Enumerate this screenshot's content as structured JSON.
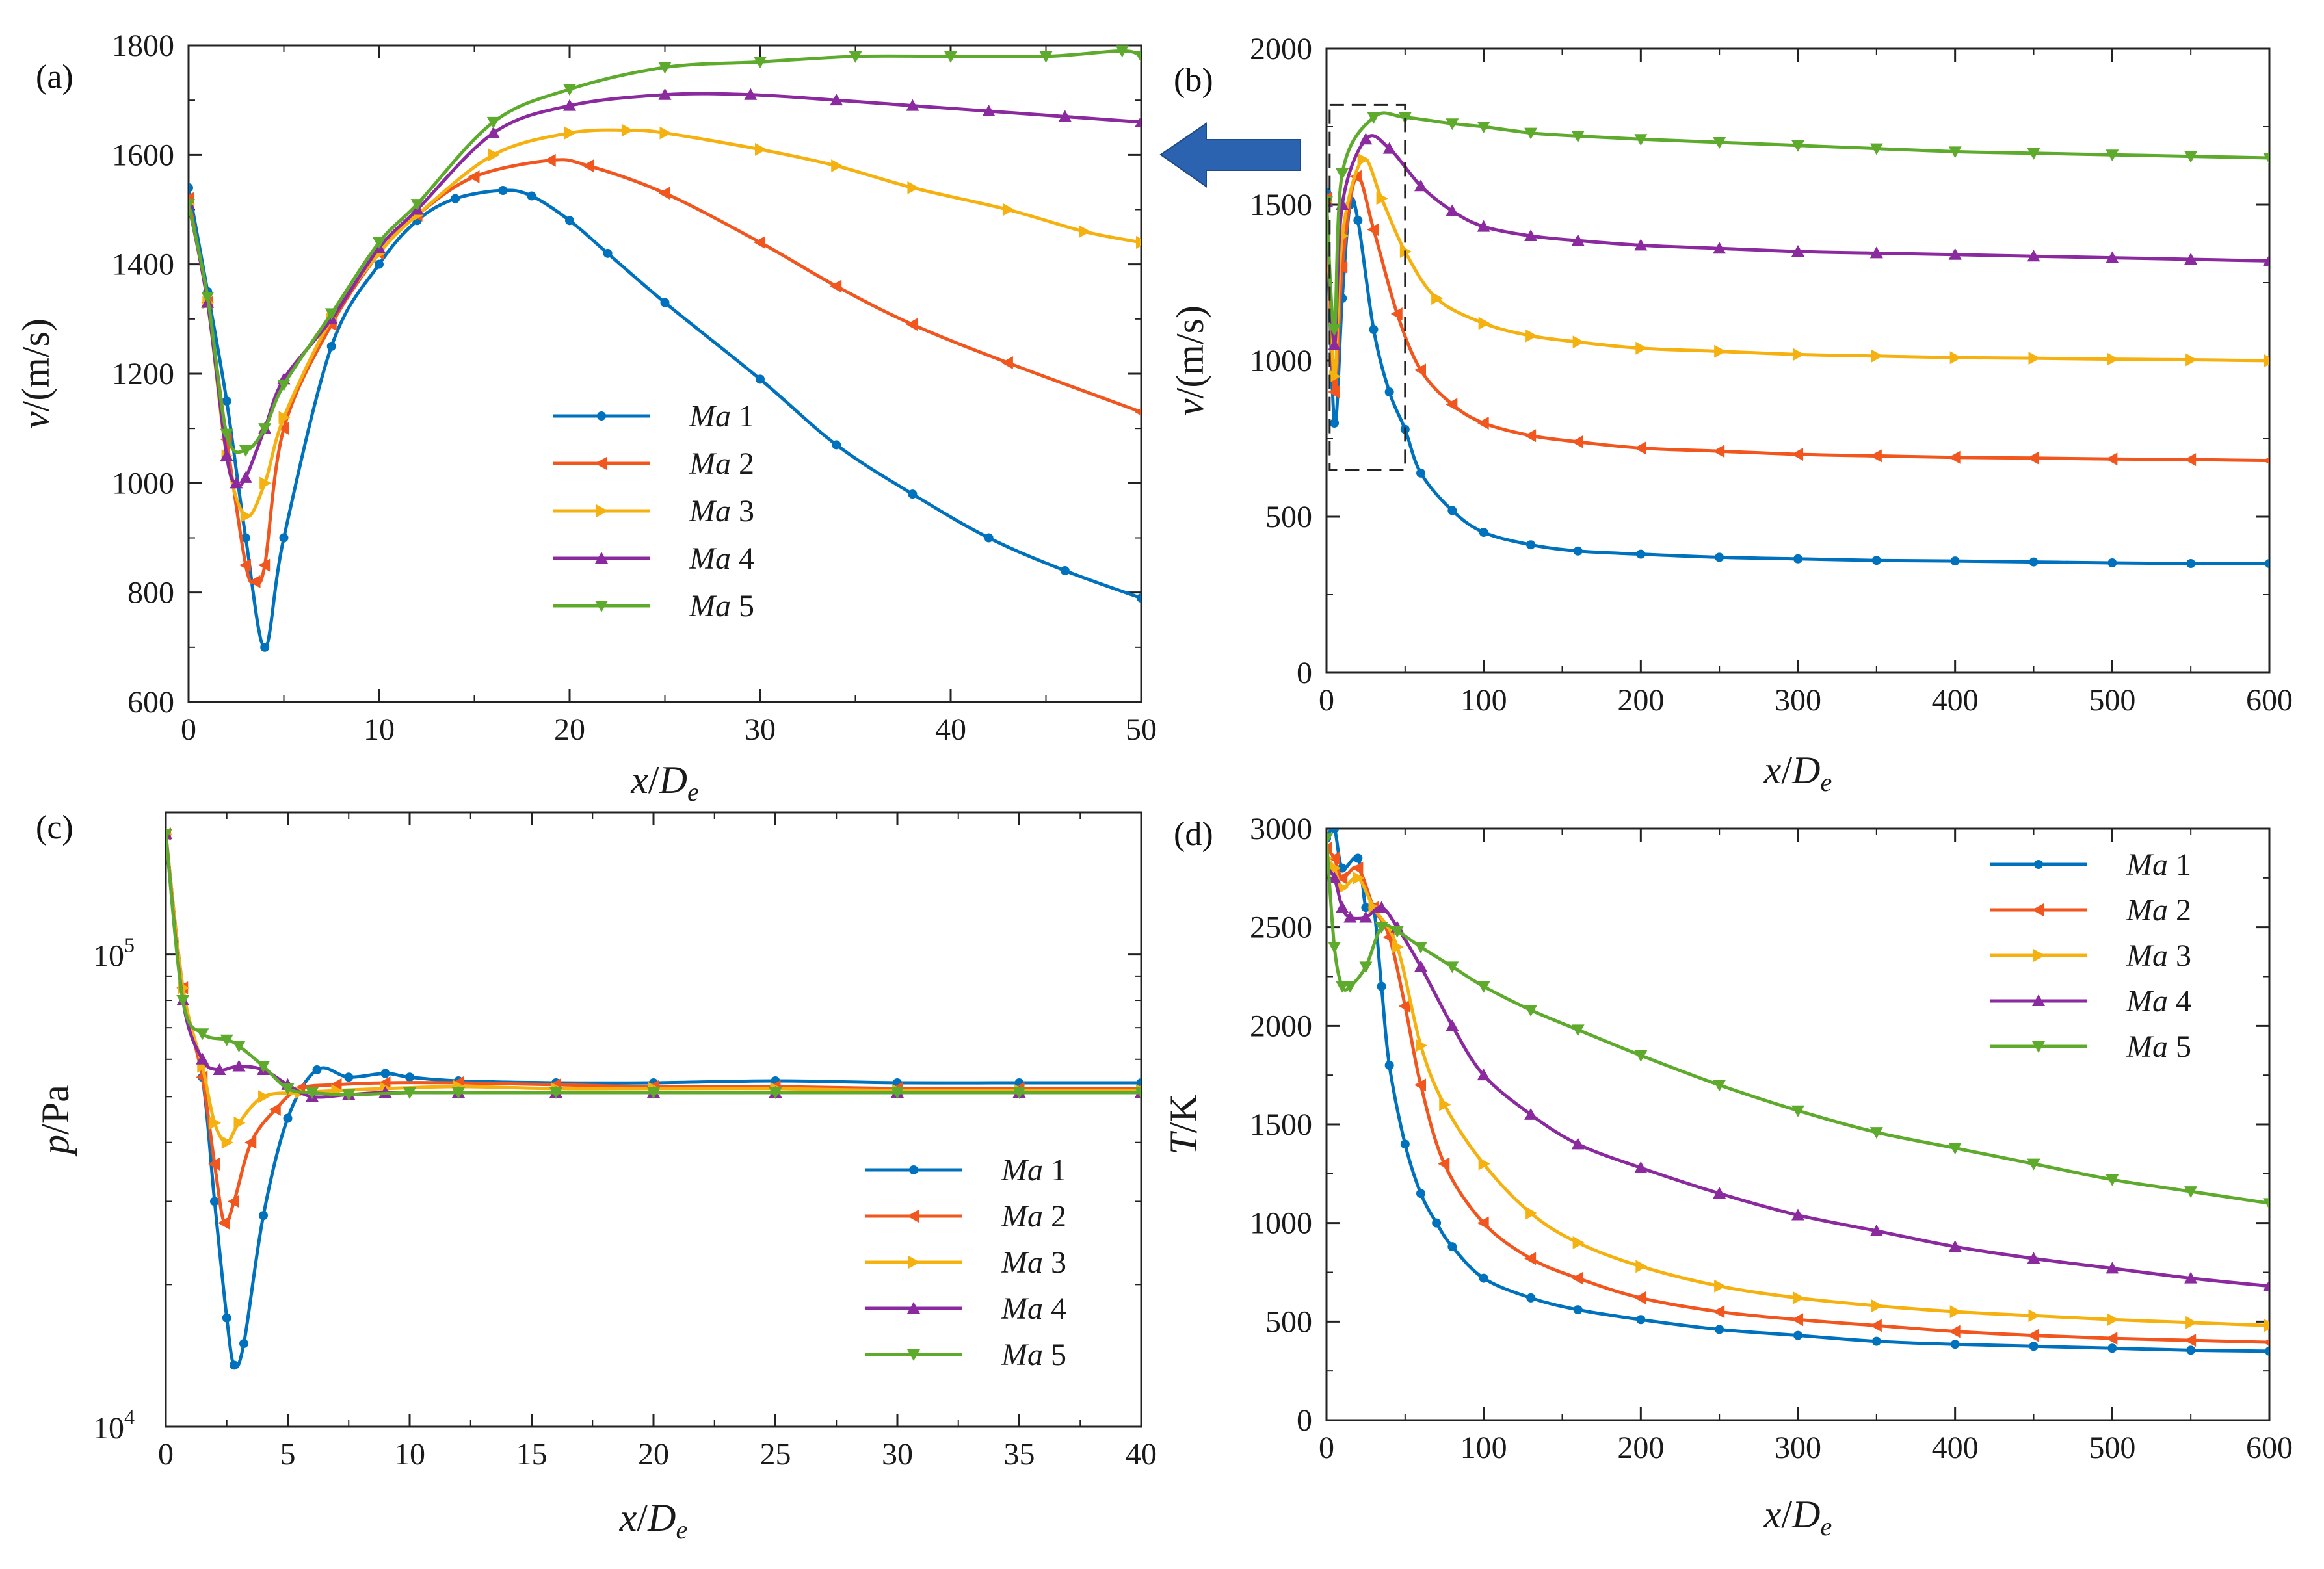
{
  "colors": {
    "Ma 1": "#0072BD",
    "Ma 2": "#F0561E",
    "Ma 3": "#F5B10F",
    "Ma 4": "#8A2A9E",
    "Ma 5": "#5DAA2D",
    "arrow": "#2B63B0"
  },
  "chart_data": [
    {
      "panel": "(a)",
      "type": "line",
      "xlabel": "x/D_e",
      "ylabel": "v/(m/s)",
      "xlim": [
        0,
        50
      ],
      "ylim": [
        600,
        1800
      ],
      "xticks": [
        "0",
        "10",
        "20",
        "30",
        "40",
        "50"
      ],
      "yticks": [
        "600",
        "800",
        "1000",
        "1200",
        "1400",
        "1600",
        "1800"
      ],
      "legend": "lower center",
      "series": [
        {
          "name": "Ma 1",
          "marker": "dot",
          "x": [
            0,
            1,
            2,
            3,
            4,
            5,
            7.5,
            10,
            12,
            14,
            16.5,
            18,
            20,
            22,
            25,
            30,
            34,
            38,
            42,
            46,
            50
          ],
          "y": [
            1540,
            1350,
            1150,
            900,
            700,
            900,
            1250,
            1400,
            1480,
            1520,
            1535,
            1525,
            1480,
            1420,
            1330,
            1190,
            1070,
            980,
            900,
            840,
            790
          ]
        },
        {
          "name": "Ma 2",
          "marker": "left-triangle",
          "x": [
            0,
            1,
            2,
            3,
            3.5,
            4,
            5,
            7.5,
            10,
            12,
            15,
            19,
            21,
            25,
            30,
            34,
            38,
            43,
            50
          ],
          "y": [
            1520,
            1330,
            1080,
            850,
            820,
            850,
            1100,
            1290,
            1420,
            1490,
            1560,
            1590,
            1580,
            1530,
            1440,
            1360,
            1290,
            1220,
            1130
          ]
        },
        {
          "name": "Ma 3",
          "marker": "right-triangle",
          "x": [
            0,
            1,
            2,
            3,
            4,
            5,
            7.5,
            10,
            12,
            16,
            20,
            23,
            25,
            30,
            34,
            38,
            43,
            47,
            50
          ],
          "y": [
            1510,
            1330,
            1050,
            940,
            1000,
            1120,
            1300,
            1420,
            1490,
            1600,
            1640,
            1645,
            1640,
            1610,
            1580,
            1540,
            1500,
            1460,
            1440
          ]
        },
        {
          "name": "Ma 4",
          "marker": "up-triangle",
          "x": [
            0,
            1,
            2,
            2.5,
            3,
            4,
            5,
            7.5,
            10,
            12,
            16,
            20,
            25,
            29.5,
            34,
            38,
            42,
            46,
            50
          ],
          "y": [
            1510,
            1330,
            1050,
            1000,
            1010,
            1100,
            1190,
            1300,
            1430,
            1500,
            1640,
            1690,
            1710,
            1710,
            1700,
            1690,
            1680,
            1670,
            1660
          ]
        },
        {
          "name": "Ma 5",
          "marker": "down-triangle",
          "x": [
            0,
            1,
            2,
            3,
            4,
            5,
            7.5,
            10,
            12,
            16,
            20,
            25,
            30,
            35,
            40,
            45,
            49,
            50
          ],
          "y": [
            1510,
            1340,
            1090,
            1060,
            1100,
            1180,
            1310,
            1440,
            1510,
            1660,
            1720,
            1760,
            1770,
            1780,
            1780,
            1780,
            1790,
            1780
          ]
        }
      ]
    },
    {
      "panel": "(b)",
      "type": "line",
      "xlabel": "x/D_e",
      "ylabel": "v/(m/s)",
      "xlim": [
        0,
        600
      ],
      "ylim": [
        0,
        2000
      ],
      "xticks": [
        "0",
        "100",
        "200",
        "300",
        "400",
        "500",
        "600"
      ],
      "yticks": [
        "0",
        "500",
        "1000",
        "1500",
        "2000"
      ],
      "legend": "none",
      "annotations": [
        "dashed box around x 0–50 referencing panel (a)",
        "arrow pointing to panel (a)"
      ],
      "series": [
        {
          "name": "Ma 1",
          "marker": "dot",
          "x": [
            0,
            5,
            10,
            15,
            20,
            30,
            40,
            50,
            60,
            80,
            100,
            130,
            160,
            200,
            250,
            300,
            350,
            400,
            450,
            500,
            550,
            600
          ],
          "y": [
            1540,
            800,
            1200,
            1500,
            1450,
            1100,
            900,
            780,
            640,
            520,
            450,
            410,
            390,
            380,
            370,
            365,
            360,
            358,
            355,
            352,
            350,
            350
          ]
        },
        {
          "name": "Ma 2",
          "marker": "left-triangle",
          "x": [
            0,
            5,
            10,
            19,
            30,
            45,
            60,
            80,
            100,
            130,
            160,
            200,
            250,
            300,
            350,
            400,
            450,
            500,
            550,
            600
          ],
          "y": [
            1520,
            900,
            1300,
            1590,
            1420,
            1150,
            970,
            860,
            800,
            760,
            740,
            720,
            710,
            700,
            695,
            690,
            688,
            685,
            683,
            680
          ]
        },
        {
          "name": "Ma 3",
          "marker": "right-triangle",
          "x": [
            0,
            5,
            10,
            23,
            35,
            50,
            70,
            100,
            130,
            160,
            200,
            250,
            300,
            350,
            400,
            450,
            500,
            550,
            600
          ],
          "y": [
            1510,
            950,
            1400,
            1645,
            1520,
            1350,
            1200,
            1120,
            1080,
            1060,
            1040,
            1030,
            1020,
            1015,
            1010,
            1008,
            1005,
            1003,
            1000
          ]
        },
        {
          "name": "Ma 4",
          "marker": "up-triangle",
          "x": [
            0,
            5,
            10,
            25,
            40,
            60,
            80,
            100,
            130,
            160,
            200,
            250,
            300,
            350,
            400,
            450,
            500,
            550,
            600
          ],
          "y": [
            1510,
            1050,
            1500,
            1710,
            1680,
            1560,
            1480,
            1430,
            1400,
            1385,
            1370,
            1360,
            1350,
            1345,
            1340,
            1335,
            1330,
            1325,
            1320
          ]
        },
        {
          "name": "Ma 5",
          "marker": "down-triangle",
          "x": [
            0,
            5,
            10,
            30,
            50,
            80,
            100,
            130,
            160,
            200,
            250,
            300,
            350,
            400,
            450,
            500,
            550,
            600
          ],
          "y": [
            1510,
            1100,
            1600,
            1780,
            1780,
            1760,
            1750,
            1730,
            1720,
            1710,
            1700,
            1690,
            1680,
            1670,
            1665,
            1660,
            1655,
            1650
          ]
        }
      ]
    },
    {
      "panel": "(c)",
      "type": "line",
      "xlabel": "x/D_e",
      "ylabel": "p/Pa",
      "yscale": "log",
      "xlim": [
        0,
        40
      ],
      "ylim": [
        10000,
        200000
      ],
      "xticks": [
        "0",
        "5",
        "10",
        "15",
        "20",
        "25",
        "30",
        "35",
        "40"
      ],
      "yticks": [
        "10^4",
        "10^5"
      ],
      "legend": "lower right",
      "series": [
        {
          "name": "Ma 1",
          "marker": "dot",
          "x": [
            0,
            0.7,
            1.5,
            2,
            2.5,
            2.8,
            3.2,
            4,
            5,
            6.2,
            7.5,
            9,
            10,
            12,
            16,
            20,
            25,
            30,
            35,
            40
          ],
          "y": [
            180000,
            85000,
            55000,
            30000,
            17000,
            13500,
            15000,
            28000,
            45000,
            57000,
            55000,
            56000,
            55000,
            54000,
            53500,
            53500,
            54000,
            53500,
            53500,
            53500
          ]
        },
        {
          "name": "Ma 2",
          "marker": "left-triangle",
          "x": [
            0,
            0.7,
            1.5,
            2,
            2.4,
            2.8,
            3.5,
            4.5,
            5.5,
            7,
            9,
            12,
            16,
            20,
            25,
            30,
            35,
            40
          ],
          "y": [
            180000,
            85000,
            55000,
            36000,
            27000,
            30000,
            40000,
            47000,
            52000,
            53000,
            53500,
            53500,
            53000,
            52500,
            52500,
            52000,
            52000,
            52000
          ]
        },
        {
          "name": "Ma 3",
          "marker": "right-triangle",
          "x": [
            0,
            0.7,
            1.5,
            2,
            2.5,
            3,
            4,
            5.5,
            7,
            9,
            12,
            16,
            20,
            25,
            30,
            35,
            40
          ],
          "y": [
            180000,
            85000,
            58000,
            44000,
            40000,
            44000,
            50000,
            51000,
            51500,
            52000,
            52500,
            52000,
            52000,
            52000,
            51500,
            51500,
            51500
          ]
        },
        {
          "name": "Ma 4",
          "marker": "up-triangle",
          "x": [
            0,
            0.7,
            1.5,
            2.2,
            3,
            4,
            5,
            6,
            7.5,
            9,
            12,
            16,
            20,
            25,
            30,
            35,
            40
          ],
          "y": [
            180000,
            80000,
            60000,
            57000,
            58000,
            57000,
            53000,
            50000,
            50500,
            51000,
            51000,
            51000,
            51000,
            51000,
            51000,
            51000,
            51000
          ]
        },
        {
          "name": "Ma 5",
          "marker": "down-triangle",
          "x": [
            0,
            0.7,
            1.5,
            2.5,
            3,
            4,
            5,
            6,
            7.5,
            10,
            12,
            16,
            20,
            25,
            30,
            35,
            40
          ],
          "y": [
            180000,
            80000,
            68000,
            66000,
            64000,
            58000,
            52000,
            51000,
            50500,
            51000,
            51000,
            51000,
            51000,
            51000,
            51000,
            51000,
            51000
          ]
        }
      ]
    },
    {
      "panel": "(d)",
      "type": "line",
      "xlabel": "x/D_e",
      "ylabel": "T/K",
      "xlim": [
        0,
        600
      ],
      "ylim": [
        0,
        3000
      ],
      "xticks": [
        "0",
        "100",
        "200",
        "300",
        "400",
        "500",
        "600"
      ],
      "yticks": [
        "0",
        "500",
        "1000",
        "1500",
        "2000",
        "2500",
        "3000"
      ],
      "legend": "top right",
      "series": [
        {
          "name": "Ma 1",
          "marker": "dot",
          "x": [
            0,
            5,
            10,
            20,
            25,
            30,
            35,
            40,
            50,
            60,
            70,
            80,
            100,
            130,
            160,
            200,
            250,
            300,
            350,
            400,
            450,
            500,
            550,
            600
          ],
          "y": [
            2950,
            3000,
            2800,
            2850,
            2600,
            2600,
            2200,
            1800,
            1400,
            1150,
            1000,
            880,
            720,
            620,
            560,
            510,
            460,
            430,
            400,
            385,
            375,
            365,
            355,
            350
          ]
        },
        {
          "name": "Ma 2",
          "marker": "left-triangle",
          "x": [
            0,
            5,
            10,
            20,
            30,
            40,
            50,
            60,
            75,
            100,
            130,
            160,
            200,
            250,
            300,
            350,
            400,
            450,
            500,
            550,
            600
          ],
          "y": [
            2900,
            2850,
            2750,
            2800,
            2600,
            2450,
            2100,
            1700,
            1300,
            1000,
            820,
            720,
            620,
            550,
            510,
            480,
            450,
            430,
            415,
            405,
            395
          ]
        },
        {
          "name": "Ma 3",
          "marker": "right-triangle",
          "x": [
            0,
            5,
            10,
            20,
            30,
            45,
            60,
            75,
            100,
            130,
            160,
            200,
            250,
            300,
            350,
            400,
            450,
            500,
            550,
            600
          ],
          "y": [
            2850,
            2800,
            2700,
            2750,
            2600,
            2400,
            1900,
            1600,
            1300,
            1050,
            900,
            780,
            680,
            620,
            580,
            550,
            530,
            510,
            495,
            480
          ]
        },
        {
          "name": "Ma 4",
          "marker": "up-triangle",
          "x": [
            0,
            5,
            10,
            15,
            25,
            35,
            45,
            60,
            80,
            100,
            130,
            160,
            200,
            250,
            300,
            350,
            400,
            450,
            500,
            550,
            600
          ],
          "y": [
            2800,
            2750,
            2600,
            2550,
            2550,
            2600,
            2500,
            2300,
            2000,
            1750,
            1550,
            1400,
            1280,
            1150,
            1040,
            960,
            880,
            820,
            770,
            720,
            680
          ]
        },
        {
          "name": "Ma 5",
          "marker": "down-triangle",
          "x": [
            0,
            5,
            10,
            15,
            25,
            35,
            45,
            60,
            80,
            100,
            130,
            160,
            200,
            250,
            300,
            350,
            400,
            450,
            500,
            550,
            600
          ],
          "y": [
            2950,
            2400,
            2200,
            2200,
            2300,
            2500,
            2480,
            2400,
            2300,
            2200,
            2080,
            1980,
            1850,
            1700,
            1570,
            1460,
            1380,
            1300,
            1220,
            1160,
            1100
          ]
        }
      ]
    }
  ]
}
